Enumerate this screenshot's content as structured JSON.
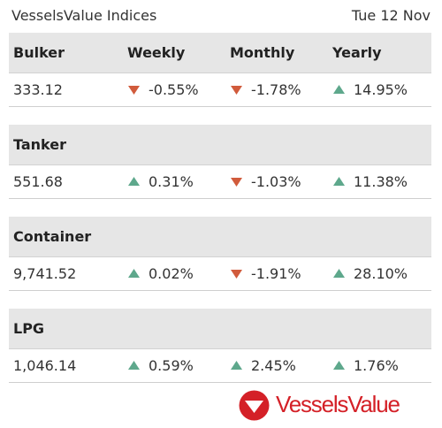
{
  "widget": {
    "title": "VesselsValue Indices",
    "date": "Tue 12 Nov"
  },
  "colors": {
    "up": "#5ea88c",
    "down": "#d15b3c",
    "header_bg": "#e6e6e6",
    "brand": "#d42027"
  },
  "columns": {
    "weekly": "Weekly",
    "monthly": "Monthly",
    "yearly": "Yearly"
  },
  "sections": [
    {
      "name": "Bulker",
      "value": "333.12",
      "weekly": {
        "text": "-0.55%",
        "dir": "down"
      },
      "monthly": {
        "text": "-1.78%",
        "dir": "down"
      },
      "yearly": {
        "text": "14.95%",
        "dir": "up"
      }
    },
    {
      "name": "Tanker",
      "value": "551.68",
      "weekly": {
        "text": "0.31%",
        "dir": "up"
      },
      "monthly": {
        "text": "-1.03%",
        "dir": "down"
      },
      "yearly": {
        "text": "11.38%",
        "dir": "up"
      }
    },
    {
      "name": "Container",
      "value": "9,741.52",
      "weekly": {
        "text": "0.02%",
        "dir": "up"
      },
      "monthly": {
        "text": "-1.91%",
        "dir": "down"
      },
      "yearly": {
        "text": "28.10%",
        "dir": "up"
      }
    },
    {
      "name": "LPG",
      "value": "1,046.14",
      "weekly": {
        "text": "0.59%",
        "dir": "up"
      },
      "monthly": {
        "text": "2.45%",
        "dir": "up"
      },
      "yearly": {
        "text": "1.76%",
        "dir": "up"
      }
    }
  ],
  "footer": {
    "logo_text": "VesselsValue",
    "logo_icon": "vesselsvalue-logo-icon"
  }
}
